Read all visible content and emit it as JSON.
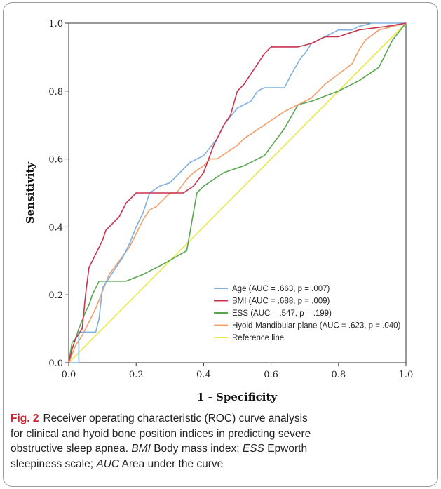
{
  "chart_data": {
    "type": "line",
    "title": "",
    "xlabel": "1 - Specificity",
    "ylabel": "Sensitivity",
    "xlim": [
      0,
      1
    ],
    "ylim": [
      0,
      1
    ],
    "x_ticks": [
      "0.0",
      "0.2",
      "0.4",
      "0.6",
      "0.8",
      "1.0"
    ],
    "y_ticks": [
      "0.0",
      "0.2",
      "0.4",
      "0.6",
      "0.8",
      "1.0"
    ],
    "grid": false,
    "legend_position": "bottom-right",
    "series": [
      {
        "name": "Age (AUC = .663, p = .007)",
        "color": "#7eb0e0",
        "x": [
          0,
          0.03,
          0.03,
          0.08,
          0.09,
          0.1,
          0.12,
          0.14,
          0.16,
          0.18,
          0.2,
          0.22,
          0.24,
          0.27,
          0.3,
          0.33,
          0.36,
          0.4,
          0.44,
          0.46,
          0.5,
          0.54,
          0.56,
          0.58,
          0.6,
          0.64,
          0.66,
          0.69,
          0.7,
          0.72,
          0.76,
          0.8,
          0.84,
          0.86,
          0.9,
          0.94,
          0.97,
          1.0
        ],
        "y": [
          0,
          0,
          0.09,
          0.09,
          0.13,
          0.22,
          0.25,
          0.28,
          0.31,
          0.35,
          0.4,
          0.44,
          0.5,
          0.52,
          0.53,
          0.56,
          0.59,
          0.61,
          0.66,
          0.7,
          0.75,
          0.77,
          0.8,
          0.81,
          0.81,
          0.81,
          0.85,
          0.9,
          0.91,
          0.94,
          0.96,
          0.98,
          0.98,
          0.99,
          1.0,
          1.0,
          1.0,
          1.0
        ]
      },
      {
        "name": "BMI (AUC = .688, p = .009)",
        "color": "#c8334e",
        "x": [
          0,
          0.01,
          0.02,
          0.04,
          0.05,
          0.06,
          0.07,
          0.08,
          0.1,
          0.11,
          0.13,
          0.15,
          0.17,
          0.18,
          0.2,
          0.22,
          0.26,
          0.3,
          0.34,
          0.37,
          0.4,
          0.43,
          0.46,
          0.48,
          0.5,
          0.52,
          0.54,
          0.56,
          0.58,
          0.6,
          0.64,
          0.68,
          0.72,
          0.76,
          0.8,
          0.86,
          0.94,
          1.0
        ],
        "y": [
          0,
          0.04,
          0.07,
          0.1,
          0.2,
          0.28,
          0.3,
          0.32,
          0.36,
          0.39,
          0.41,
          0.43,
          0.47,
          0.48,
          0.5,
          0.5,
          0.5,
          0.5,
          0.5,
          0.52,
          0.56,
          0.64,
          0.7,
          0.73,
          0.8,
          0.82,
          0.85,
          0.88,
          0.91,
          0.93,
          0.93,
          0.93,
          0.94,
          0.96,
          0.96,
          0.98,
          0.99,
          1.0
        ]
      },
      {
        "name": "ESS (AUC = .547, p = .199)",
        "color": "#5aa64f",
        "x": [
          0,
          0.01,
          0.02,
          0.03,
          0.05,
          0.06,
          0.07,
          0.09,
          0.12,
          0.17,
          0.22,
          0.28,
          0.35,
          0.38,
          0.4,
          0.46,
          0.52,
          0.58,
          0.64,
          0.68,
          0.72,
          0.8,
          0.86,
          0.92,
          0.96,
          1.0
        ],
        "y": [
          0,
          0.06,
          0.07,
          0.1,
          0.15,
          0.17,
          0.2,
          0.24,
          0.24,
          0.24,
          0.26,
          0.29,
          0.33,
          0.5,
          0.52,
          0.56,
          0.58,
          0.61,
          0.69,
          0.76,
          0.77,
          0.8,
          0.83,
          0.87,
          0.95,
          1.0
        ]
      },
      {
        "name": "Hyoid-Mandibular plane (AUC = .623, p = .040)",
        "color": "#f0a06e",
        "x": [
          0,
          0.02,
          0.04,
          0.06,
          0.08,
          0.1,
          0.12,
          0.15,
          0.18,
          0.2,
          0.22,
          0.24,
          0.26,
          0.28,
          0.3,
          0.32,
          0.35,
          0.37,
          0.4,
          0.42,
          0.44,
          0.47,
          0.5,
          0.52,
          0.55,
          0.58,
          0.61,
          0.64,
          0.68,
          0.72,
          0.76,
          0.8,
          0.84,
          0.86,
          0.88,
          0.92,
          0.96,
          1.0
        ],
        "y": [
          0,
          0.05,
          0.08,
          0.12,
          0.16,
          0.21,
          0.26,
          0.3,
          0.34,
          0.38,
          0.42,
          0.45,
          0.46,
          0.48,
          0.5,
          0.5,
          0.54,
          0.56,
          0.58,
          0.6,
          0.6,
          0.62,
          0.64,
          0.66,
          0.68,
          0.7,
          0.72,
          0.74,
          0.76,
          0.78,
          0.82,
          0.85,
          0.88,
          0.92,
          0.95,
          0.98,
          0.99,
          1.0
        ]
      },
      {
        "name": "Reference line",
        "color": "#e8e84a",
        "x": [
          0,
          1
        ],
        "y": [
          0,
          1
        ]
      }
    ]
  },
  "caption": {
    "fig_label": "Fig. 2",
    "line1": "Receiver operating characteristic (ROC) curve analysis",
    "line2": "for clinical and hyoid bone position indices in predicting severe",
    "line3_pre": "obstructive sleep apnea.",
    "abbr_bmi": "BMI",
    "def_bmi": "Body mass index;",
    "abbr_ess": "ESS",
    "def_ess": "Epworth",
    "line4_pre": "sleepiness scale;",
    "abbr_auc": "AUC",
    "def_auc": "Area under the curve"
  }
}
